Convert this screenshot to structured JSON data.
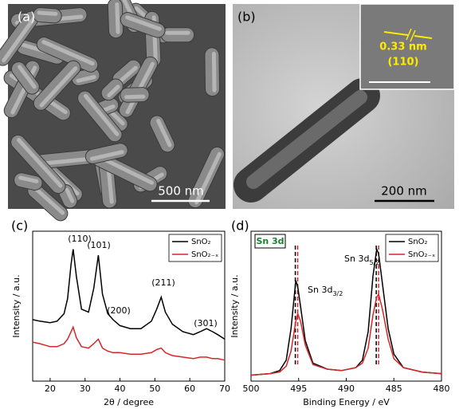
{
  "panels": [
    {
      "label": "(a)",
      "scale_bar": "500 nm"
    },
    {
      "label": "(b)",
      "scale_bar": "200 nm",
      "inset": {
        "spacing": "0.33 nm",
        "plane": "(110)"
      }
    }
  ],
  "chart_data": [
    {
      "type": "line",
      "label": "(c)",
      "xlabel": "2θ / degree",
      "ylabel": "Intensity / a.u.",
      "x": [
        15,
        17,
        20,
        22,
        24,
        25,
        26,
        26.6,
        27.5,
        29,
        31,
        32.5,
        33.8,
        35,
        36.5,
        38,
        40,
        43,
        46,
        49,
        50.5,
        51.8,
        53,
        55,
        58,
        61,
        63,
        64.8,
        66.5,
        68,
        70
      ],
      "series": [
        {
          "name": "SnO₂",
          "color": "#000000",
          "values": [
            41,
            40,
            39,
            40,
            45,
            55,
            78,
            88,
            70,
            48,
            46,
            62,
            84,
            58,
            45,
            41,
            37,
            35,
            35,
            40,
            48,
            56,
            46,
            38,
            33,
            31,
            33,
            35,
            33,
            31,
            28
          ]
        },
        {
          "name": "SnO₂₋ₓ",
          "color": "#d62728",
          "values": [
            26,
            25,
            23,
            23,
            25,
            28,
            33,
            36,
            29,
            23,
            22,
            25,
            28,
            22,
            20,
            19,
            19,
            18,
            18,
            19,
            21,
            22,
            19,
            17,
            16,
            15,
            16,
            16,
            15,
            15,
            14
          ]
        }
      ],
      "xlim": [
        15,
        70
      ],
      "xticks": [
        20,
        30,
        40,
        50,
        60,
        70
      ],
      "ylim": [
        0,
        100
      ],
      "legend": "upper right",
      "annotations": [
        "(110)",
        "(101)",
        "(200)",
        "(211)",
        "(301)"
      ]
    },
    {
      "type": "line",
      "label": "(d)",
      "title": "Sn 3d",
      "xlabel": "Binding Energy / eV",
      "ylabel": "Intensity / a.u.",
      "x": [
        500,
        498,
        497,
        496.3,
        495.8,
        495.3,
        495.1,
        494.8,
        494.3,
        493.5,
        492,
        490.5,
        489,
        488.3,
        487.7,
        487.2,
        486.8,
        486.6,
        486.2,
        485.6,
        485,
        484,
        482,
        480
      ],
      "series": [
        {
          "name": "SnO₂",
          "color": "#000000",
          "values": [
            4,
            5,
            7,
            14,
            35,
            67,
            63,
            50,
            27,
            12,
            8,
            7,
            9,
            14,
            33,
            70,
            88,
            85,
            65,
            35,
            18,
            9,
            6,
            5
          ]
        },
        {
          "name": "SnO₂₋ₓ",
          "color": "#d62728",
          "values": [
            4,
            5,
            6,
            10,
            20,
            40,
            45,
            40,
            24,
            11,
            8,
            7,
            9,
            12,
            22,
            44,
            56,
            58,
            48,
            28,
            15,
            9,
            6,
            5
          ]
        }
      ],
      "xlim": [
        500,
        480
      ],
      "xticks": [
        500,
        495,
        490,
        485,
        480
      ],
      "ylim": [
        0,
        100
      ],
      "legend": "upper right",
      "reference_lines": [
        {
          "x": 495.35,
          "color": "#000000"
        },
        {
          "x": 495.1,
          "color": "#d62728"
        },
        {
          "x": 486.85,
          "color": "#000000"
        },
        {
          "x": 486.6,
          "color": "#d62728"
        }
      ],
      "annotations": [
        {
          "text": "Sn 3d",
          "sub": "3/2"
        },
        {
          "text": "Sn 3d",
          "sub": "5/2"
        }
      ]
    }
  ]
}
